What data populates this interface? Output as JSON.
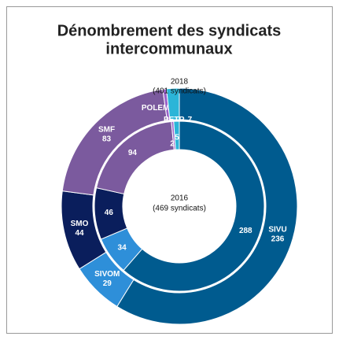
{
  "chart_data": {
    "type": "donut",
    "title": [
      "Dénombrement des syndicats",
      "intercommunaux"
    ],
    "categories": [
      "SIVU",
      "SIVOM",
      "SMO",
      "SMF",
      "POLEM",
      "PETR"
    ],
    "colors": [
      "#005b8f",
      "#2e8fd9",
      "#0a1e5c",
      "#7b5a9e",
      "#9a62c8",
      "#2bb5d8"
    ],
    "series": [
      {
        "name": "2018",
        "detail": "(401 syndicats)",
        "values": [
          236,
          29,
          44,
          83,
          2,
          7
        ]
      },
      {
        "name": "2016",
        "detail": "(469 syndicats)",
        "values": [
          288,
          34,
          46,
          94,
          2,
          5
        ]
      }
    ]
  }
}
